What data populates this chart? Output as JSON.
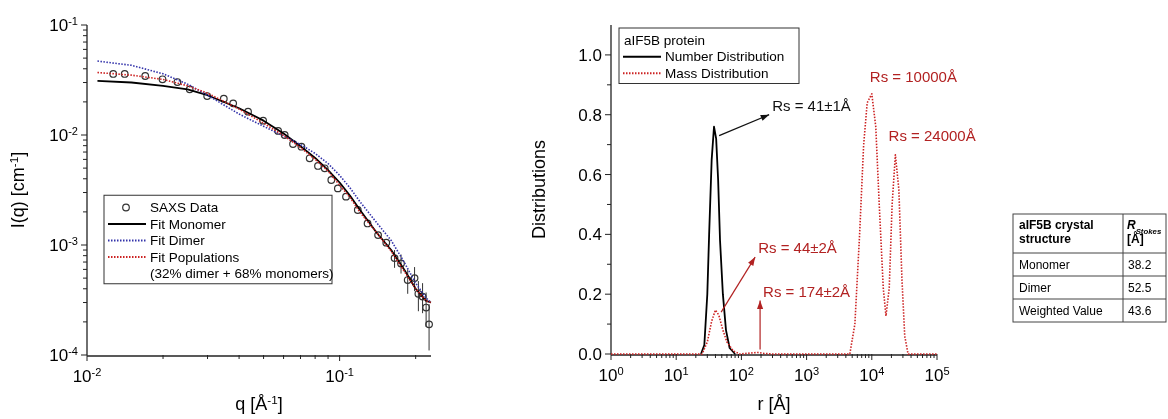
{
  "chart_data": [
    {
      "type": "line",
      "xlabel": "q [Å$^{-1}$]",
      "ylabel": "I(q) [cm$^{-1}$]",
      "log": "xy",
      "legend": "left",
      "xlim": [
        0.01,
        0.23
      ],
      "ylim": [
        0.0001,
        0.1
      ],
      "xticks": [
        {
          "value": 0.01,
          "label": "10$^{-2}$"
        },
        {
          "value": 0.02,
          "label": null
        },
        {
          "value": 0.03,
          "label": null
        },
        {
          "value": 0.04,
          "label": null
        },
        {
          "value": 0.05,
          "label": null
        },
        {
          "value": 0.06,
          "label": null
        },
        {
          "value": 0.07,
          "label": null
        },
        {
          "value": 0.08,
          "label": null
        },
        {
          "value": 0.09,
          "label": null
        },
        {
          "value": 0.1,
          "label": "10$^{-1}$"
        },
        {
          "value": 0.2,
          "label": null
        }
      ],
      "yticks": [
        {
          "value": 0.0001,
          "label": "10$^{-4}$"
        },
        {
          "value": 0.0002,
          "label": null
        },
        {
          "value": 0.0003,
          "label": null
        },
        {
          "value": 0.0004,
          "label": null
        },
        {
          "value": 0.0005,
          "label": null
        },
        {
          "value": 0.0006,
          "label": null
        },
        {
          "value": 0.0007,
          "label": null
        },
        {
          "value": 0.0008,
          "label": null
        },
        {
          "value": 0.0009,
          "label": null
        },
        {
          "value": 0.001,
          "label": "10$^{-3}$"
        },
        {
          "value": 0.002,
          "label": null
        },
        {
          "value": 0.003,
          "label": null
        },
        {
          "value": 0.004,
          "label": null
        },
        {
          "value": 0.005,
          "label": null
        },
        {
          "value": 0.006,
          "label": null
        },
        {
          "value": 0.007,
          "label": null
        },
        {
          "value": 0.008,
          "label": null
        },
        {
          "value": 0.009,
          "label": null
        },
        {
          "value": 0.01,
          "label": "10$^{-2}$"
        },
        {
          "value": 0.02,
          "label": null
        },
        {
          "value": 0.03,
          "label": null
        },
        {
          "value": 0.04,
          "label": null
        },
        {
          "value": 0.05,
          "label": null
        },
        {
          "value": 0.06,
          "label": null
        },
        {
          "value": 0.07,
          "label": null
        },
        {
          "value": 0.08,
          "label": null
        },
        {
          "value": 0.09,
          "label": null
        },
        {
          "value": 0.1,
          "label": "10$^{-1}$"
        }
      ],
      "series": [
        {
          "name": "SAXS Data",
          "type": "scatter",
          "marker": "circle",
          "color": "#333333",
          "x": [
            0.0127,
            0.0141,
            0.017,
            0.0199,
            0.0228,
            0.0255,
            0.0299,
            0.0348,
            0.0379,
            0.0434,
            0.0498,
            0.0571,
            0.0606,
            0.0654,
            0.0706,
            0.0761,
            0.0821,
            0.0873,
            0.0927,
            0.0984,
            0.106,
            0.118,
            0.129,
            0.142,
            0.153,
            0.165,
            0.175,
            0.186,
            0.198,
            0.205,
            0.213,
            0.22,
            0.226
          ],
          "values": [
            0.0359,
            0.0359,
            0.0344,
            0.0321,
            0.0303,
            0.026,
            0.0226,
            0.0214,
            0.0194,
            0.0163,
            0.0135,
            0.0109,
            0.01,
            0.00828,
            0.00783,
            0.00614,
            0.00523,
            0.00498,
            0.0039,
            0.00327,
            0.00275,
            0.00208,
            0.00157,
            0.00123,
            0.00105,
            0.00076,
            0.00068,
            0.00048,
            0.0005,
            0.00036,
            0.00034,
            0.00027,
            0.00019
          ],
          "errors": [
            null,
            null,
            null,
            null,
            null,
            null,
            null,
            null,
            null,
            null,
            null,
            null,
            null,
            null,
            null,
            null,
            null,
            null,
            null,
            null,
            null,
            null,
            null,
            null,
            null,
            [
              0.00062,
              0.0009
            ],
            [
              0.00055,
              0.00082
            ],
            [
              0.00036,
              0.0006
            ],
            [
              0.00038,
              0.00063
            ],
            [
              0.00025,
              0.00047
            ],
            [
              0.00024,
              0.00045
            ],
            [
              0.00018,
              0.00037
            ],
            [
              0.00011,
              0.00029
            ]
          ]
        },
        {
          "name": "Fit Monomer",
          "type": "line",
          "line_style": "solid",
          "color": "#000000",
          "x": [
            0.011,
            0.015,
            0.02,
            0.025,
            0.03,
            0.04,
            0.05,
            0.06,
            0.07,
            0.08,
            0.09,
            0.1,
            0.11,
            0.12,
            0.14,
            0.16,
            0.18,
            0.2,
            0.22,
            0.23
          ],
          "values": [
            0.031,
            0.03,
            0.028,
            0.026,
            0.023,
            0.0175,
            0.0135,
            0.0103,
            0.0079,
            0.0062,
            0.0048,
            0.0037,
            0.0028,
            0.0021,
            0.0013,
            0.0009,
            0.0006,
            0.0004,
            0.00031,
            0.0003
          ]
        },
        {
          "name": "Fit Dimer",
          "type": "line",
          "line_style": "dotted",
          "color": "#3333aa",
          "x": [
            0.011,
            0.015,
            0.02,
            0.025,
            0.03,
            0.04,
            0.05,
            0.06,
            0.07,
            0.08,
            0.09,
            0.1,
            0.11,
            0.12,
            0.14,
            0.16,
            0.18,
            0.2,
            0.22,
            0.23
          ],
          "values": [
            0.047,
            0.043,
            0.036,
            0.029,
            0.023,
            0.0155,
            0.012,
            0.0098,
            0.0082,
            0.0068,
            0.0055,
            0.0043,
            0.0033,
            0.0025,
            0.0016,
            0.0011,
            0.0007,
            0.00045,
            0.00033,
            0.0003
          ]
        },
        {
          "name": "Fit Populations\n(32% dimer + 68% monomers)",
          "type": "line",
          "line_style": "dotted",
          "color": "#cc2222",
          "x": [
            0.011,
            0.015,
            0.02,
            0.025,
            0.03,
            0.04,
            0.05,
            0.06,
            0.07,
            0.08,
            0.09,
            0.1,
            0.11,
            0.12,
            0.14,
            0.16,
            0.18,
            0.2,
            0.22,
            0.23
          ],
          "values": [
            0.037,
            0.035,
            0.032,
            0.028,
            0.024,
            0.0172,
            0.0128,
            0.0099,
            0.0077,
            0.006,
            0.0047,
            0.0035,
            0.0027,
            0.002,
            0.0013,
            0.00088,
            0.00058,
            0.0004,
            0.00031,
            0.0003
          ]
        }
      ]
    },
    {
      "type": "line",
      "xlabel": "r [Å]",
      "ylabel": "Distributions",
      "log": "x",
      "legend": "top left",
      "legend_title": "aIF5B protein",
      "xlim": [
        1,
        100000
      ],
      "ylim": [
        0,
        1.1
      ],
      "xticks": [
        {
          "value": 1,
          "label": "10$^{0}$"
        },
        {
          "value": 2,
          "label": null
        },
        {
          "value": 3,
          "label": null
        },
        {
          "value": 4,
          "label": null
        },
        {
          "value": 5,
          "label": null
        },
        {
          "value": 6,
          "label": null
        },
        {
          "value": 7,
          "label": null
        },
        {
          "value": 8,
          "label": null
        },
        {
          "value": 9,
          "label": null
        },
        {
          "value": 10,
          "label": "10$^{1}$"
        },
        {
          "value": 20,
          "label": null
        },
        {
          "value": 30,
          "label": null
        },
        {
          "value": 40,
          "label": null
        },
        {
          "value": 50,
          "label": null
        },
        {
          "value": 60,
          "label": null
        },
        {
          "value": 70,
          "label": null
        },
        {
          "value": 80,
          "label": null
        },
        {
          "value": 90,
          "label": null
        },
        {
          "value": 100,
          "label": "10$^{2}$"
        },
        {
          "value": 200,
          "label": null
        },
        {
          "value": 300,
          "label": null
        },
        {
          "value": 400,
          "label": null
        },
        {
          "value": 500,
          "label": null
        },
        {
          "value": 600,
          "label": null
        },
        {
          "value": 700,
          "label": null
        },
        {
          "value": 800,
          "label": null
        },
        {
          "value": 900,
          "label": null
        },
        {
          "value": 1000,
          "label": "10$^{3}$"
        },
        {
          "value": 2000,
          "label": null
        },
        {
          "value": 3000,
          "label": null
        },
        {
          "value": 4000,
          "label": null
        },
        {
          "value": 5000,
          "label": null
        },
        {
          "value": 6000,
          "label": null
        },
        {
          "value": 7000,
          "label": null
        },
        {
          "value": 8000,
          "label": null
        },
        {
          "value": 9000,
          "label": null
        },
        {
          "value": 10000,
          "label": "10$^{4}$"
        },
        {
          "value": 20000,
          "label": null
        },
        {
          "value": 30000,
          "label": null
        },
        {
          "value": 40000,
          "label": null
        },
        {
          "value": 50000,
          "label": null
        },
        {
          "value": 60000,
          "label": null
        },
        {
          "value": 70000,
          "label": null
        },
        {
          "value": 80000,
          "label": null
        },
        {
          "value": 90000,
          "label": null
        },
        {
          "value": 100000,
          "label": "10$^{5}$"
        }
      ],
      "yticks": [
        {
          "value": 0,
          "label": "0.0"
        },
        {
          "value": 0.1,
          "label": null
        },
        0.2,
        {
          "value": 0.3,
          "label": null
        },
        0.4,
        {
          "value": 0.5,
          "label": null
        },
        0.6,
        {
          "value": 0.7,
          "label": null
        },
        0.8,
        {
          "value": 0.9,
          "label": null
        },
        {
          "value": 1,
          "label": "1.0"
        }
      ],
      "annotations": [
        {
          "text": "Rs = 41±1Å",
          "x": 41,
          "y": 0.72
        },
        {
          "text": "Rs = 44±2Å",
          "x": 44,
          "y": 0.13
        },
        {
          "text": "Rs = 174±2Å",
          "x": 174,
          "y": 0.005
        },
        {
          "text": "Rs = 10000Å",
          "x": 10000,
          "y": 0.87
        },
        {
          "text": "Rs = 24000Å",
          "x": 24000,
          "y": 0.666
        }
      ],
      "series": [
        {
          "name": "Number Distribution",
          "type": "line",
          "line_style": "solid",
          "color": "#000000",
          "x": [
            24,
            27,
            30,
            32,
            35,
            38,
            41,
            44,
            47,
            52,
            58,
            66,
            80
          ],
          "values": [
            0,
            0.03,
            0.2,
            0.4,
            0.65,
            0.76,
            0.72,
            0.58,
            0.38,
            0.2,
            0.08,
            0.02,
            0
          ]
        },
        {
          "name": "Mass Distribution",
          "type": "line",
          "line_style": "dotted",
          "color": "#cc2222",
          "x": [
            1,
            25,
            30,
            35,
            40,
            45,
            52,
            60,
            75,
            95,
            150,
            180,
            220,
            300,
            4600,
            5500,
            6500,
            7500,
            8500,
            10000,
            11500,
            13000,
            15000,
            16500,
            18500,
            20500,
            23000,
            26000,
            29000,
            32000,
            36000,
            100000
          ],
          "values": [
            0,
            0,
            0.04,
            0.11,
            0.147,
            0.13,
            0.08,
            0.04,
            0.01,
            0,
            0.004,
            0.005,
            0.002,
            0,
            0,
            0.1,
            0.4,
            0.7,
            0.84,
            0.87,
            0.76,
            0.5,
            0.22,
            0.127,
            0.22,
            0.5,
            0.666,
            0.55,
            0.25,
            0.06,
            0,
            0
          ]
        }
      ]
    },
    {
      "type": "other",
      "xlabel": "aIF5B crystal structure",
      "ylabel": "R$_{Stokes}$ [Å]",
      "categories": [
        "Monomer",
        "Dimer",
        "Weighted Value"
      ],
      "values": [
        38.2,
        52.5,
        43.6
      ],
      "data_labels": true
    }
  ]
}
